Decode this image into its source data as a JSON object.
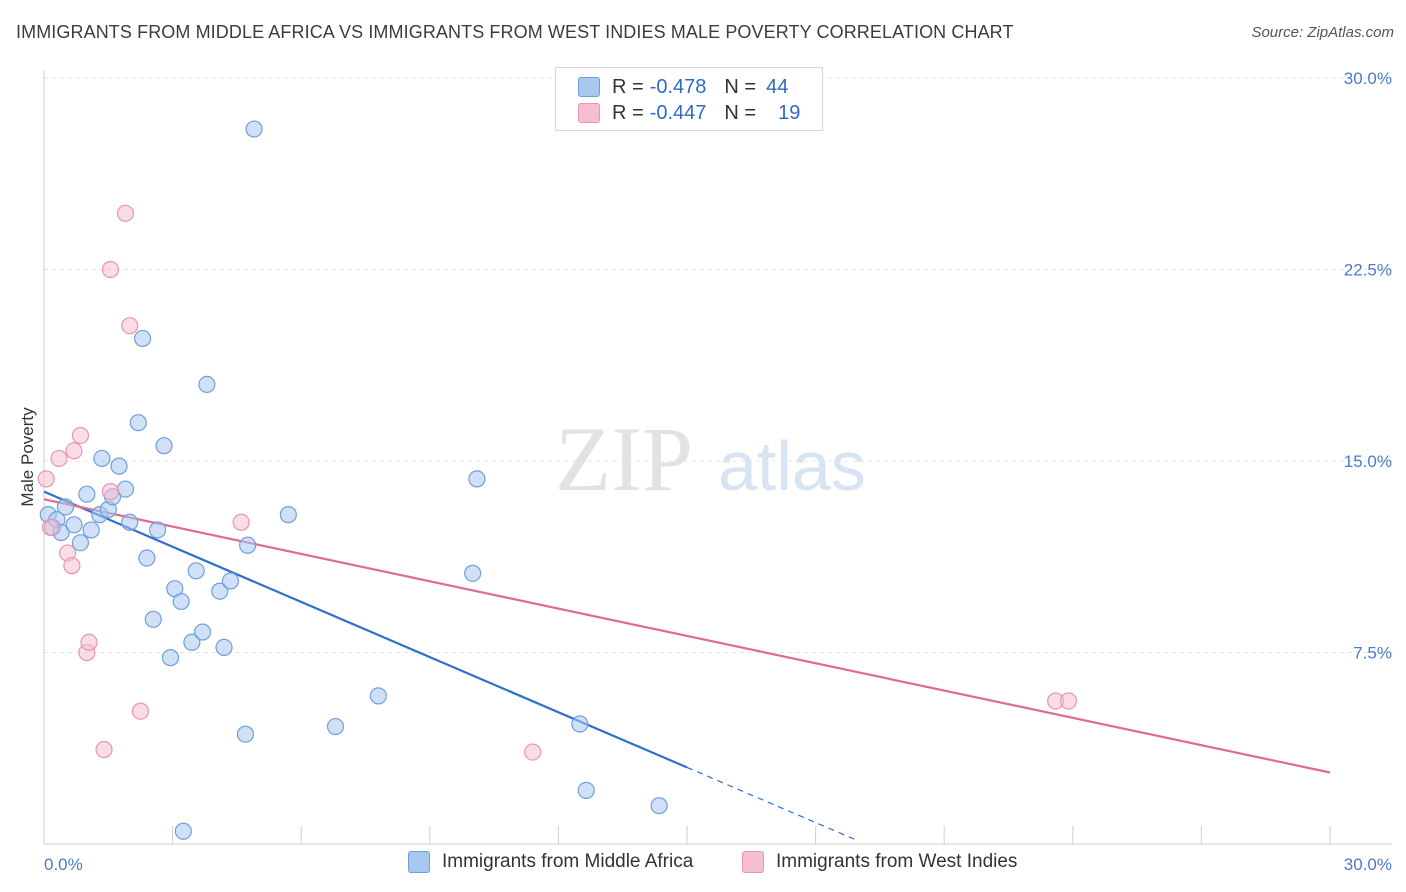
{
  "title": "IMMIGRANTS FROM MIDDLE AFRICA VS IMMIGRANTS FROM WEST INDIES MALE POVERTY CORRELATION CHART",
  "source": "Source: ZipAtlas.com",
  "watermark": {
    "zip": "ZIP",
    "atlas": "atlas"
  },
  "legend": {
    "series1": {
      "r_label": "R =",
      "r_value": "-0.478",
      "n_label": "N =",
      "n_value": "44"
    },
    "series2": {
      "r_label": "R =",
      "r_value": "-0.447",
      "n_label": "N =",
      "n_value": "19"
    }
  },
  "colors": {
    "blue_fill": "#a9c8f0",
    "blue_stroke": "#6f9fdc",
    "blue_line": "#2f6fd0",
    "pink_fill": "#f6bfd0",
    "pink_stroke": "#e995b0",
    "pink_line": "#e06a96"
  },
  "chart_data": {
    "type": "scatter",
    "xlabel": "",
    "ylabel": "Male Poverty",
    "xlim": [
      0,
      30
    ],
    "ylim": [
      0,
      30
    ],
    "x_tick_labels": [
      "0.0%",
      "30.0%"
    ],
    "y_ticks": [
      7.5,
      15.0,
      22.5,
      30.0
    ],
    "y_tick_labels": [
      "7.5%",
      "15.0%",
      "22.5%",
      "30.0%"
    ],
    "series": [
      {
        "name": "Immigrants from Middle Africa",
        "color": "#a9c8f0",
        "points": [
          [
            0.1,
            12.9
          ],
          [
            0.2,
            12.4
          ],
          [
            0.3,
            12.7
          ],
          [
            0.4,
            12.2
          ],
          [
            0.5,
            13.2
          ],
          [
            0.7,
            12.5
          ],
          [
            0.85,
            11.8
          ],
          [
            1.0,
            13.7
          ],
          [
            1.1,
            12.3
          ],
          [
            1.3,
            12.9
          ],
          [
            1.35,
            15.1
          ],
          [
            1.5,
            13.1
          ],
          [
            1.6,
            13.6
          ],
          [
            1.75,
            14.8
          ],
          [
            1.9,
            13.9
          ],
          [
            2.0,
            12.6
          ],
          [
            2.2,
            16.5
          ],
          [
            2.3,
            19.8
          ],
          [
            2.4,
            11.2
          ],
          [
            2.55,
            8.8
          ],
          [
            2.65,
            12.3
          ],
          [
            2.8,
            15.6
          ],
          [
            2.95,
            7.3
          ],
          [
            3.05,
            10.0
          ],
          [
            3.2,
            9.5
          ],
          [
            3.25,
            0.5
          ],
          [
            3.45,
            7.9
          ],
          [
            3.55,
            10.7
          ],
          [
            3.7,
            8.3
          ],
          [
            3.8,
            18.0
          ],
          [
            4.1,
            9.9
          ],
          [
            4.2,
            7.7
          ],
          [
            4.35,
            10.3
          ],
          [
            4.7,
            4.3
          ],
          [
            4.75,
            11.7
          ],
          [
            4.9,
            28.0
          ],
          [
            5.7,
            12.9
          ],
          [
            6.8,
            4.6
          ],
          [
            7.8,
            5.8
          ],
          [
            10.0,
            10.6
          ],
          [
            10.1,
            14.3
          ],
          [
            12.5,
            4.7
          ],
          [
            12.65,
            2.1
          ],
          [
            14.35,
            1.5
          ]
        ],
        "trend": {
          "x0": 0,
          "y0": 13.8,
          "x1": 15.0,
          "y1": 3.0,
          "dash_to_x": 19.0
        }
      },
      {
        "name": "Immigrants from West Indies",
        "color": "#f6bfd0",
        "points": [
          [
            0.05,
            14.3
          ],
          [
            0.15,
            12.4
          ],
          [
            0.35,
            15.1
          ],
          [
            0.55,
            11.4
          ],
          [
            0.65,
            10.9
          ],
          [
            0.7,
            15.4
          ],
          [
            0.85,
            16.0
          ],
          [
            1.0,
            7.5
          ],
          [
            1.05,
            7.9
          ],
          [
            1.4,
            3.7
          ],
          [
            1.55,
            13.8
          ],
          [
            1.55,
            22.5
          ],
          [
            2.25,
            5.2
          ],
          [
            1.9,
            24.7
          ],
          [
            2.0,
            20.3
          ],
          [
            4.6,
            12.6
          ],
          [
            11.4,
            3.6
          ],
          [
            23.6,
            5.6
          ],
          [
            23.9,
            5.6
          ]
        ],
        "trend": {
          "x0": 0,
          "y0": 13.5,
          "x1": 30.0,
          "y1": 2.8
        }
      }
    ]
  },
  "bottom_legend": {
    "item1": "Immigrants from Middle Africa",
    "item2": "Immigrants from West Indies"
  }
}
